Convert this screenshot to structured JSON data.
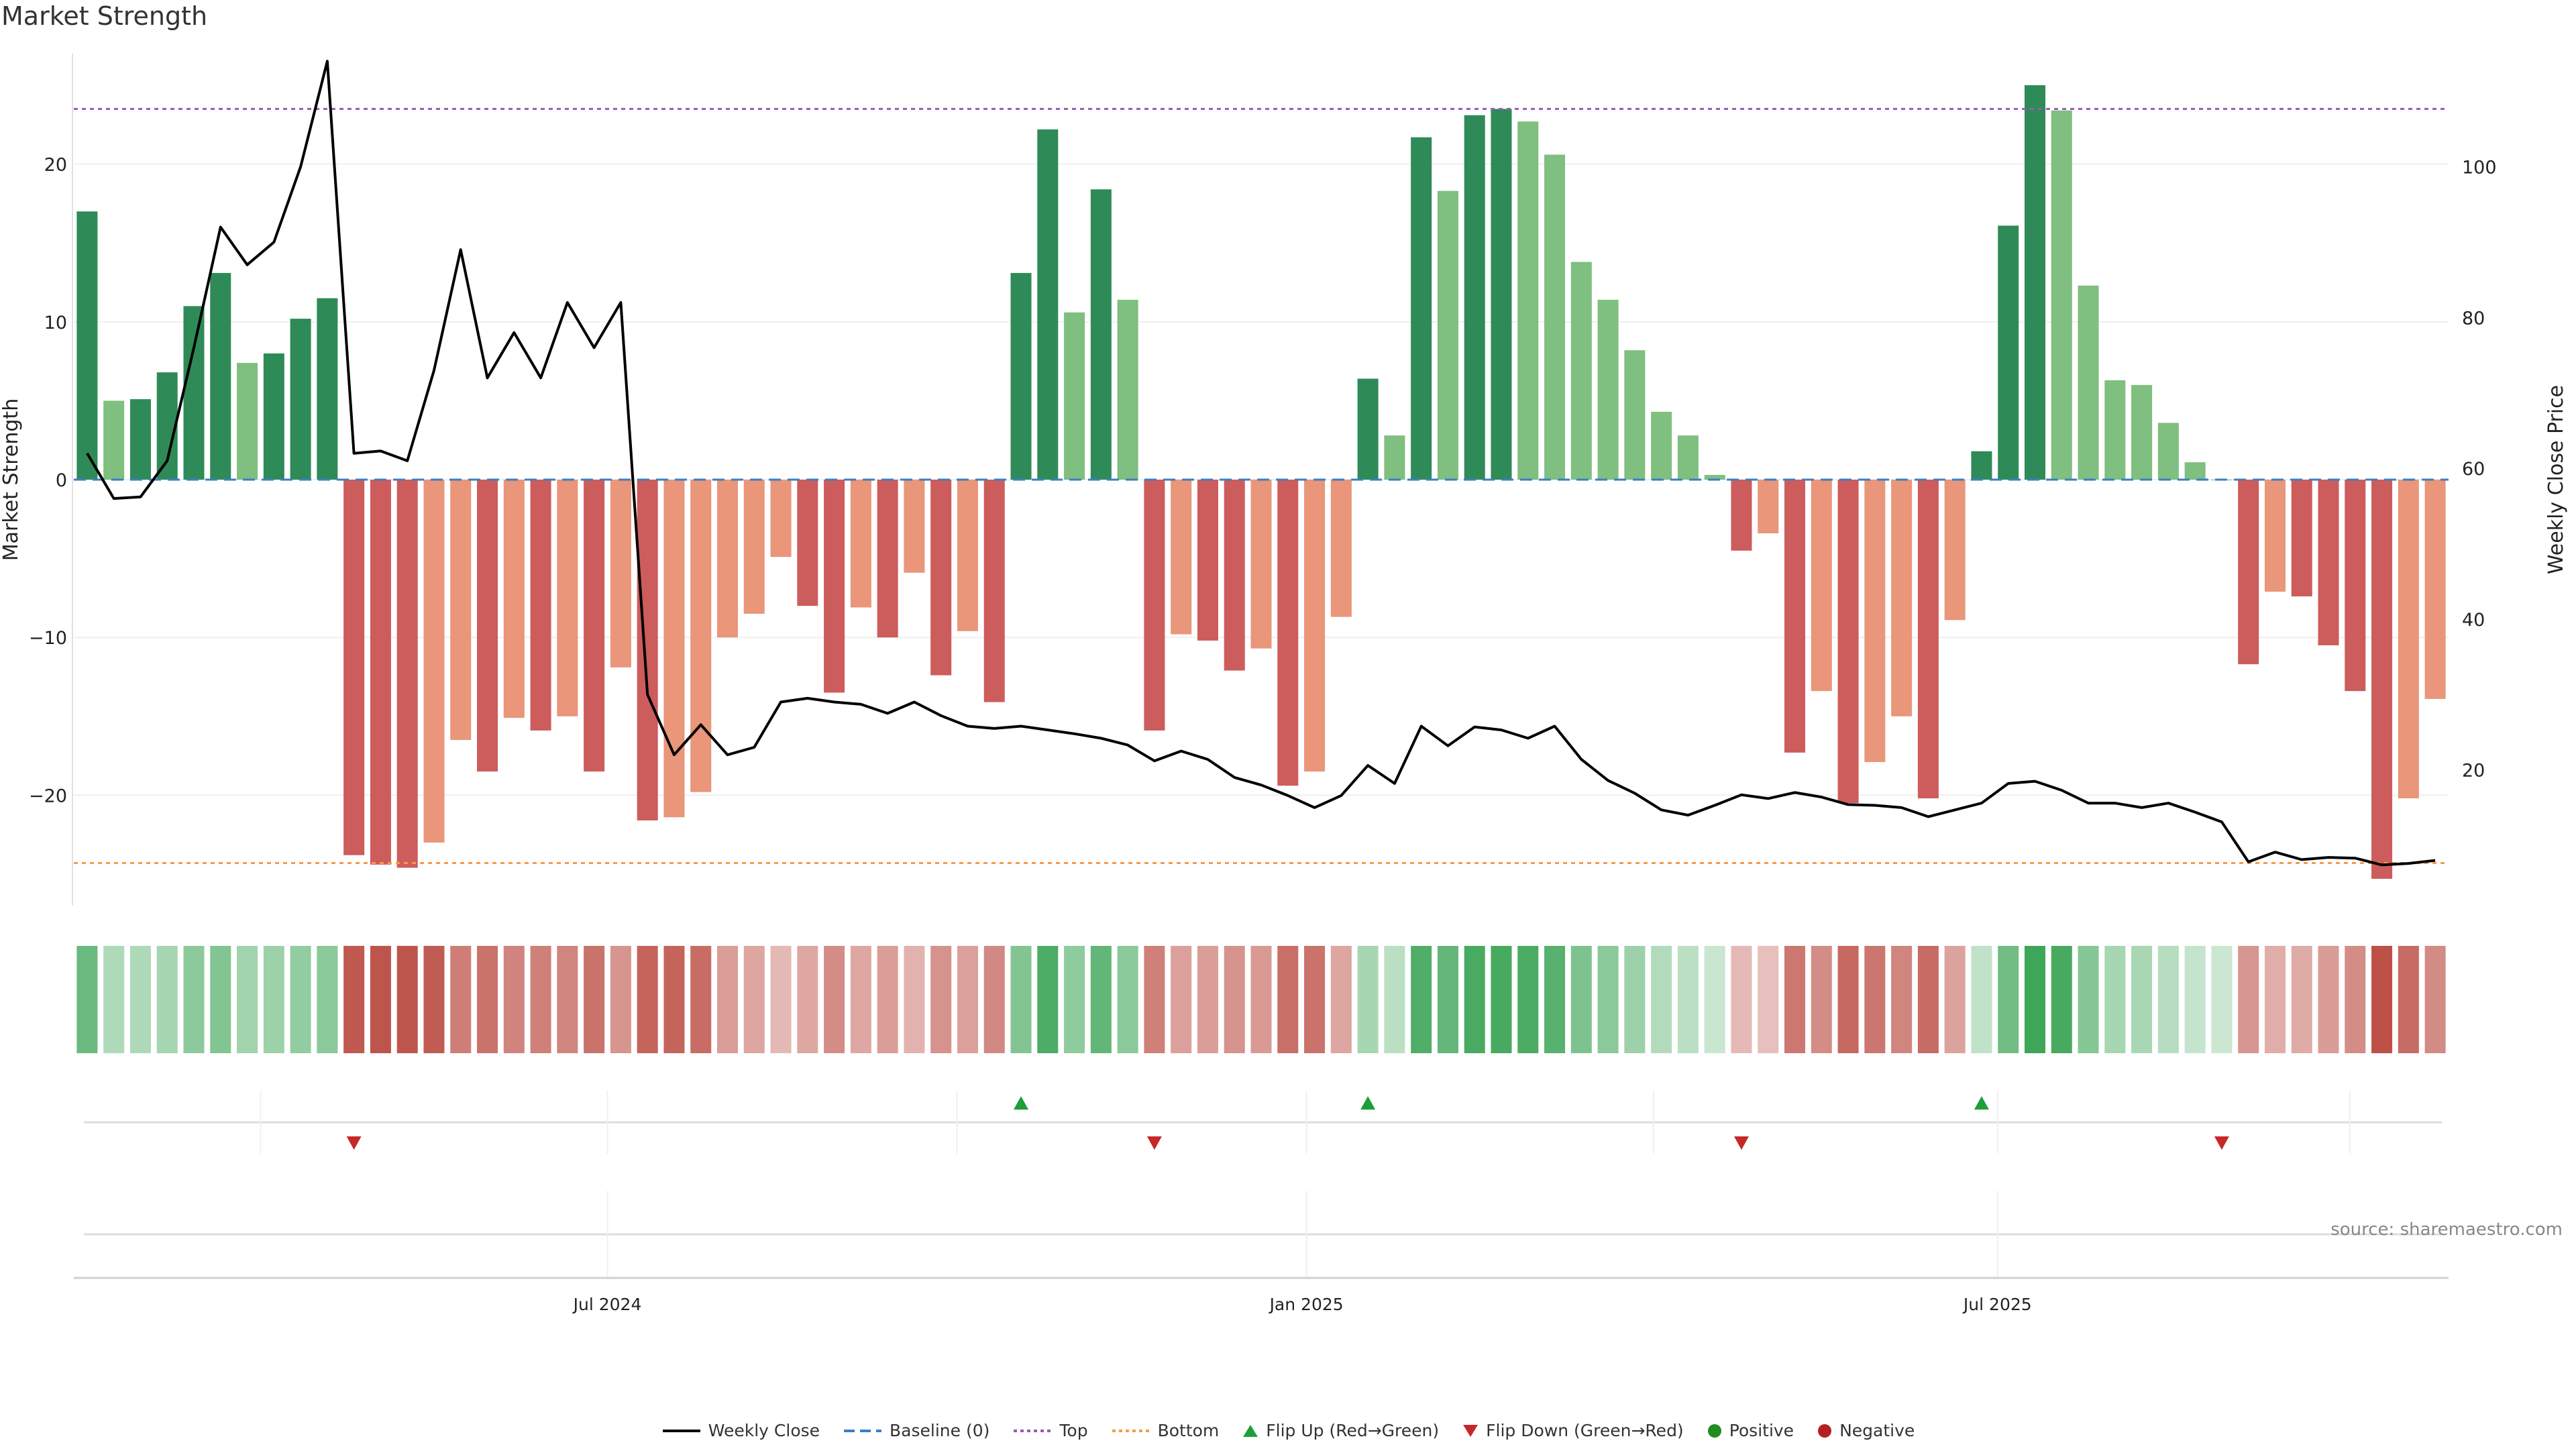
{
  "title": "Market Strength",
  "source": "source: sharemaestro.com",
  "colors": {
    "strong_positive": "#2e8b57",
    "weak_positive": "#7fbf7f",
    "strong_negative": "#cd5c5c",
    "weak_negative": "#e9967a",
    "price_line": "#000000",
    "baseline": "#3b7fc4",
    "top": "#9b59b6",
    "bottom": "#f39c4a",
    "flip_up": "#1f9e3a",
    "flip_down": "#c62828",
    "positive": "#228b22",
    "negative": "#b22222"
  },
  "legend": [
    {
      "key": "price",
      "label": "Weekly Close"
    },
    {
      "key": "baseline",
      "label": "Baseline (0)"
    },
    {
      "key": "top",
      "label": "Top"
    },
    {
      "key": "bottom",
      "label": "Bottom"
    },
    {
      "key": "flip_up",
      "label": "Flip Up (Red→Green)"
    },
    {
      "key": "flip_down",
      "label": "Flip Down (Green→Red)"
    },
    {
      "key": "positive",
      "label": "Positive"
    },
    {
      "key": "negative",
      "label": "Negative"
    }
  ],
  "chart_data": {
    "type": "bar",
    "title": "Market Strength",
    "ylabel": "Market Strength",
    "y2label": "Weekly Close Price",
    "ylim": [
      -27,
      27
    ],
    "y2lim": [
      2,
      115
    ],
    "yticks": [
      -20,
      -10,
      0,
      10,
      20
    ],
    "y2ticks": [
      20,
      40,
      60,
      80,
      100
    ],
    "top_level": 23.5,
    "bottom_level": -24.3,
    "x_ticks": [
      {
        "index": 19.5,
        "label": "Jul 2024"
      },
      {
        "index": 45.7,
        "label": "Jan 2025"
      },
      {
        "index": 71.6,
        "label": "Jul 2025"
      }
    ],
    "strength": [
      17.0,
      5.0,
      5.1,
      6.8,
      11.0,
      13.1,
      7.4,
      8.0,
      10.2,
      11.5,
      -23.8,
      -24.4,
      -24.6,
      -23.0,
      -16.5,
      -18.5,
      -15.1,
      -15.9,
      -15.0,
      -18.5,
      -11.9,
      -21.6,
      -21.4,
      -19.8,
      -10.0,
      -8.5,
      -4.9,
      -8.0,
      -13.5,
      -8.1,
      -10.0,
      -5.9,
      -12.4,
      -9.6,
      -14.1,
      13.1,
      22.2,
      10.6,
      18.4,
      11.4,
      -15.9,
      -9.8,
      -10.2,
      -12.1,
      -10.7,
      -19.4,
      -18.5,
      -8.7,
      6.4,
      2.8,
      21.7,
      18.3,
      23.1,
      23.5,
      22.7,
      20.6,
      13.8,
      11.4,
      8.2,
      4.3,
      2.8,
      0.3,
      -4.5,
      -3.4,
      -17.3,
      -13.4,
      -20.5,
      -17.9,
      -15.0,
      -20.2,
      -8.9,
      1.8,
      16.1,
      25.0,
      23.4,
      12.3,
      6.3,
      6.0,
      3.6,
      1.1,
      0.0,
      -11.7,
      -7.1,
      -7.4,
      -10.5,
      -13.4,
      -25.3,
      -20.2,
      -13.9
    ],
    "strong": [
      1,
      0,
      1,
      1,
      1,
      1,
      0,
      1,
      1,
      1,
      1,
      1,
      1,
      0,
      0,
      1,
      0,
      1,
      0,
      1,
      0,
      1,
      0,
      0,
      0,
      0,
      0,
      1,
      1,
      0,
      1,
      0,
      1,
      0,
      1,
      1,
      1,
      0,
      1,
      0,
      1,
      0,
      1,
      1,
      0,
      1,
      0,
      0,
      1,
      0,
      1,
      0,
      1,
      1,
      0,
      0,
      0,
      0,
      0,
      0,
      0,
      0,
      1,
      0,
      1,
      0,
      1,
      0,
      0,
      1,
      0,
      1,
      1,
      1,
      0,
      0,
      0,
      0,
      0,
      0,
      0,
      1,
      0,
      1,
      1,
      1,
      1,
      0,
      0
    ],
    "price": [
      62,
      56,
      56.2,
      61,
      76,
      92,
      87,
      90,
      100,
      114,
      62,
      62.3,
      61,
      73,
      89,
      72,
      78,
      72,
      82,
      76,
      82,
      30,
      22,
      26,
      22,
      23,
      29,
      29.5,
      29,
      28.7,
      27.5,
      29,
      27.2,
      25.8,
      25.5,
      25.8,
      25.3,
      24.8,
      24.2,
      23.3,
      21.2,
      22.5,
      21.4,
      19,
      18,
      16.6,
      15,
      16.6,
      20.6,
      18.2,
      25.8,
      23.2,
      25.7,
      25.3,
      24.2,
      25.8,
      21.4,
      18.6,
      16.9,
      14.7,
      14,
      15.3,
      16.7,
      16.2,
      17,
      16.4,
      15.4,
      15.3,
      15,
      13.8,
      14.7,
      15.6,
      18.2,
      18.5,
      17.3,
      15.6,
      15.6,
      15,
      15.6,
      14.4,
      13.1,
      7.8,
      9.1,
      8.1,
      8.4,
      8.3,
      7.4,
      7.6,
      8
    ],
    "flip_up": [
      35,
      48,
      71
    ],
    "flip_down": [
      10,
      40,
      62,
      80
    ],
    "minor_month_lines": [
      6.5,
      32.6,
      58.7,
      84.8
    ]
  }
}
